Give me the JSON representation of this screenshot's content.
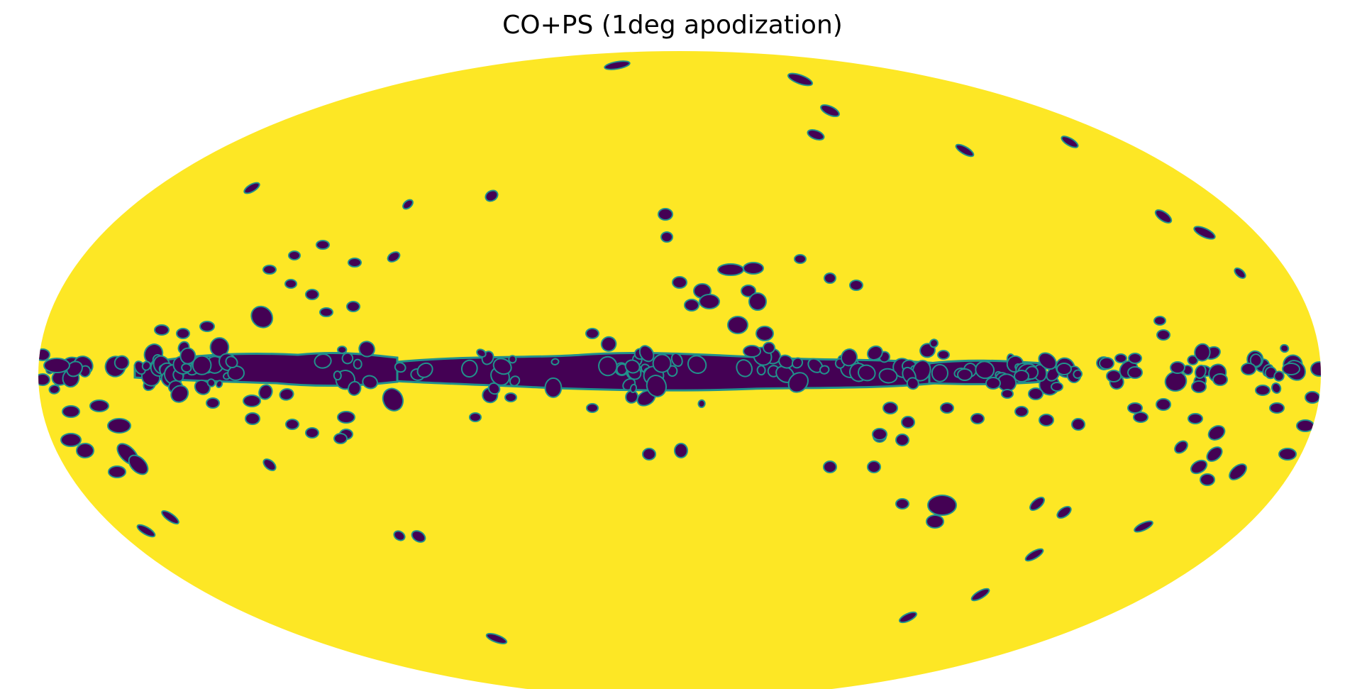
{
  "title": "CO+PS (1deg apodization)",
  "projection": "mollweide",
  "colors": {
    "unmasked": "#fde725",
    "masked": "#440154",
    "edge": "#21918c",
    "background": "#ffffff"
  },
  "mask": {
    "description_free": true,
    "galactic_plane_band": true
  }
}
